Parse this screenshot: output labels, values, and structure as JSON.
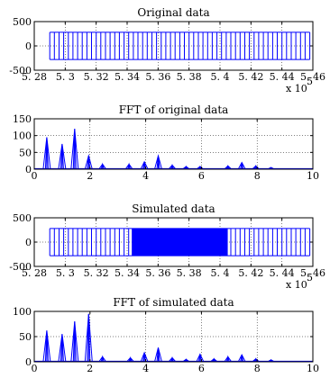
{
  "chart_data": [
    {
      "type": "line",
      "title": "Original data",
      "xlim": [
        528000,
        546000
      ],
      "ylim": [
        -500,
        500
      ],
      "x_tick_labels": [
        "5. 28",
        "5. 3",
        "5. 32",
        "5. 34",
        "5. 36",
        "5. 38",
        "5. 4",
        "5. 42",
        "5. 44",
        "5. 46"
      ],
      "y_tick_labels": [
        "-500",
        "0",
        "500"
      ],
      "x_multiplier": "x 10",
      "x_multiplier_exp": "5",
      "signal": {
        "kind": "square_bursts",
        "amplitude": 280,
        "start": 529000,
        "end": 545800,
        "period": 300,
        "dense_start": null,
        "dense_end": null
      },
      "color": "#0000ff",
      "grid": true
    },
    {
      "type": "line",
      "title": "FFT of original data",
      "xlim": [
        0,
        10
      ],
      "ylim": [
        0,
        150
      ],
      "x_tick_labels": [
        "0",
        "2",
        "4",
        "6",
        "8",
        "10"
      ],
      "y_tick_labels": [
        "0",
        "50",
        "100",
        "150"
      ],
      "peaks": [
        [
          0.45,
          95
        ],
        [
          1.0,
          75
        ],
        [
          1.45,
          120
        ],
        [
          1.95,
          40
        ],
        [
          2.45,
          15
        ],
        [
          3.4,
          15
        ],
        [
          3.95,
          22
        ],
        [
          4.45,
          40
        ],
        [
          4.95,
          12
        ],
        [
          5.45,
          8
        ],
        [
          5.95,
          8
        ],
        [
          6.95,
          10
        ],
        [
          7.45,
          20
        ],
        [
          7.95,
          10
        ],
        [
          8.5,
          5
        ]
      ],
      "color": "#0000ff",
      "grid": true
    },
    {
      "type": "line",
      "title": "Simulated data",
      "xlim": [
        528000,
        546000
      ],
      "ylim": [
        -500,
        500
      ],
      "x_tick_labels": [
        "5. 28",
        "5. 3",
        "5. 32",
        "5. 34",
        "5. 36",
        "5. 38",
        "5. 4",
        "5. 42",
        "5. 44",
        "5. 46"
      ],
      "y_tick_labels": [
        "-500",
        "0",
        "500"
      ],
      "x_multiplier": "x 10",
      "x_multiplier_exp": "5",
      "signal": {
        "kind": "square_bursts",
        "amplitude": 280,
        "start": 529000,
        "end": 545800,
        "period": 300,
        "dense_start": 534300,
        "dense_end": 540500
      },
      "color": "#0000ff",
      "grid": true
    },
    {
      "type": "line",
      "title": "FFT of simulated data",
      "xlim": [
        0,
        10
      ],
      "ylim": [
        0,
        100
      ],
      "x_tick_labels": [
        "0",
        "2",
        "4",
        "6",
        "8",
        "10"
      ],
      "y_tick_labels": [
        "0",
        "50",
        "100"
      ],
      "peaks": [
        [
          0.45,
          62
        ],
        [
          1.0,
          55
        ],
        [
          1.45,
          80
        ],
        [
          1.95,
          95
        ],
        [
          2.45,
          10
        ],
        [
          3.45,
          8
        ],
        [
          3.95,
          18
        ],
        [
          4.45,
          28
        ],
        [
          4.95,
          8
        ],
        [
          5.45,
          5
        ],
        [
          5.95,
          15
        ],
        [
          6.45,
          6
        ],
        [
          6.95,
          10
        ],
        [
          7.45,
          14
        ],
        [
          7.95,
          6
        ],
        [
          8.5,
          4
        ]
      ],
      "color": "#0000ff",
      "grid": true
    }
  ]
}
